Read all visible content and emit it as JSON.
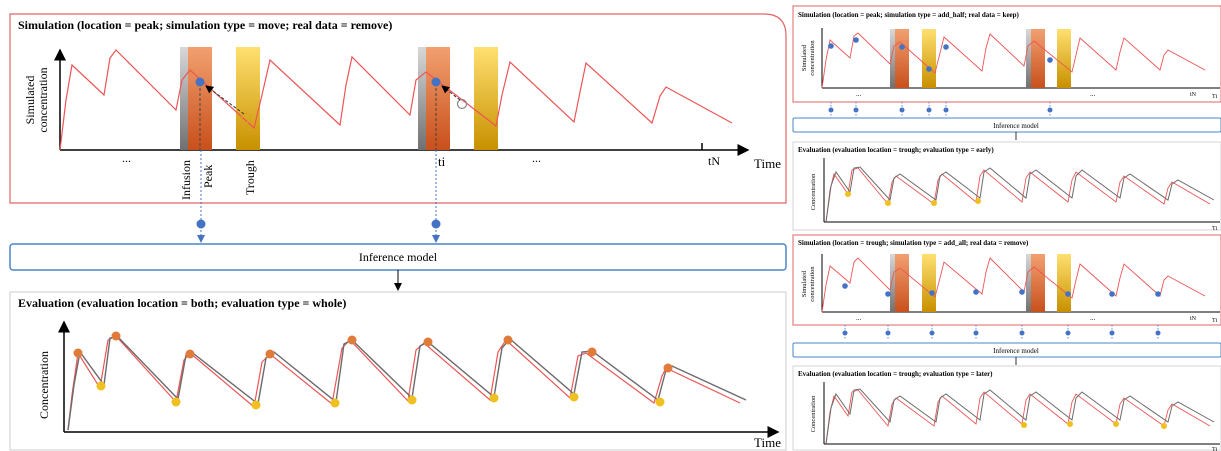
{
  "left": {
    "sim_title": "Simulation (location = peak; simulation type = move; real data = remove)",
    "y_label_line1": "Simulated",
    "y_label_line2": "concentration",
    "x_label": "Time",
    "dots1": "...",
    "dots2": "...",
    "label_infusion": "Infusion",
    "label_peak": "Peak",
    "label_trough": "Trough",
    "label_ti": "ti",
    "label_tn": "tN",
    "inference_label": "Inference model",
    "eval_title": "Evaluation (evaluation location = both; evaluation type = whole)",
    "eval_y_label": "Concentration",
    "eval_x_label": "Time"
  },
  "right_top": {
    "sim_title": "Simulation (location = peak; simulation type = add_half; real data = keep)",
    "y_label_line1": "Simulated",
    "y_label_line2": "concentration",
    "dots1": "...",
    "dots2": "...",
    "label_tn": "tN",
    "x_label": "Ti",
    "inference_label": "Inference model",
    "eval_title": "Evaluation (evaluation location = trough; evaluation type = early)",
    "eval_y_label": "Concentration",
    "eval_x_label": "Ti"
  },
  "right_bottom": {
    "sim_title": "Simulation (location = trough; simulation type = add_all; real data = remove)",
    "y_label_line1": "Simulated",
    "y_label_line2": "concentration",
    "dots1": "...",
    "dots2": "...",
    "label_tn": "tN",
    "x_label": "Ti",
    "inference_label": "Inference model",
    "eval_title": "Evaluation (evaluation location = trough; evaluation type = later)",
    "eval_y_label": "Concentration",
    "eval_x_label": "Ti"
  },
  "colors": {
    "sim_border": "#e06666",
    "inference_border": "#4a86c8",
    "curve_red": "#ee5555",
    "curve_gray": "#6b6b6b",
    "dot_blue": "#4472c4",
    "dot_orange": "#e07b39",
    "dot_yellow": "#f0c020"
  }
}
